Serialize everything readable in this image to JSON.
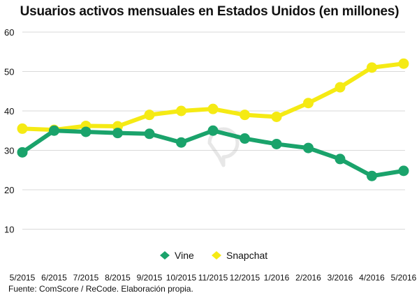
{
  "chart_data": {
    "type": "line",
    "title": "Usuarios activos mensuales en Estados Unidos (en millones)",
    "source": "Fuente: ComScore / ReCode. Elaboración propia.",
    "categories": [
      "5/2015",
      "6/2015",
      "7/2015",
      "8/2015",
      "9/2015",
      "10/2015",
      "11/2015",
      "12/2015",
      "1/2016",
      "2/2016",
      "3/2016",
      "4/2016",
      "5/2016"
    ],
    "yticks": [
      10,
      20,
      30,
      40,
      50,
      60
    ],
    "ylim": [
      0,
      60
    ],
    "grid": true,
    "legend_position": "bottom-center",
    "series": [
      {
        "name": "Vine",
        "color": "#1aa36b",
        "values": [
          29.5,
          35,
          34.7,
          34.4,
          34.2,
          32,
          35,
          33,
          31.6,
          30.6,
          27.8,
          23.5,
          24.8
        ]
      },
      {
        "name": "Snapchat",
        "color": "#f5ea14",
        "values": [
          35.5,
          35.2,
          36.2,
          36.1,
          39,
          40,
          40.5,
          39,
          38.5,
          42,
          46,
          51,
          52
        ]
      }
    ]
  }
}
